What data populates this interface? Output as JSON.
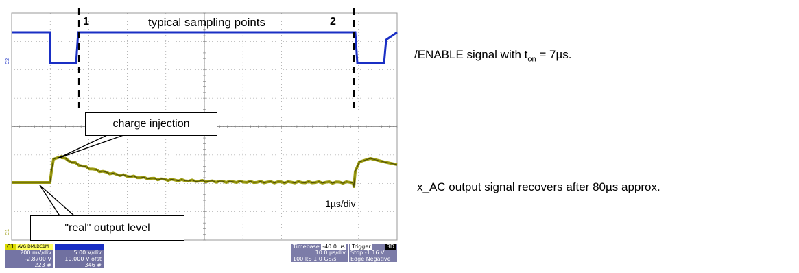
{
  "scope": {
    "markers": [
      "1",
      "2"
    ],
    "title": "typical sampling points",
    "callout_charge": "charge injection",
    "callout_real": "\"real\" output level",
    "scale_label": "1µs/div",
    "ch1_marker": "C1",
    "ch2_marker": "C2",
    "colors": {
      "ch2": "#1a2fc4",
      "ch1": "#9a9a10",
      "grid": "#888888"
    }
  },
  "side": {
    "enable_text_pre": "/ENABLE signal with t",
    "enable_sub": "on",
    "enable_text_post": " = 7µs.",
    "xac_text": "x_AC output signal recovers after 80µs approx."
  },
  "panels": {
    "c1": {
      "label": "C1",
      "tags": "AVG DMLDC1M",
      "rows": [
        "200 mV/div",
        "-2.8700 V",
        "223 #"
      ]
    },
    "c2": {
      "rows": [
        "5.00 V/div",
        "10.000 V ofst",
        "346 #"
      ]
    },
    "timebase": {
      "label": "Timebase",
      "value": "-40.0 µs",
      "rows": [
        "10.0 µs/div",
        "100 kS   1.0 GS/s"
      ]
    },
    "trigger": {
      "label": "Trigger",
      "badge": "3D",
      "rows": [
        "Stop     -1.16 V",
        "Edge  Negative"
      ]
    }
  }
}
